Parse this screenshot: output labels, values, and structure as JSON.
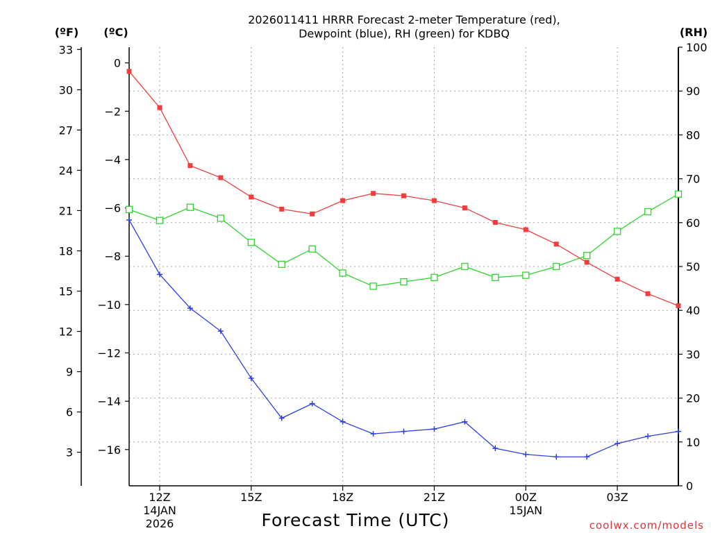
{
  "chart_data": {
    "type": "line",
    "title": "2026011411 HRRR Forecast 2-meter Temperature (red),",
    "title_line2": "Dewpoint (blue), RH (green) for KDBQ",
    "xlabel": "Forecast Time (UTC)",
    "credit": "coolwx.com/models",
    "units": {
      "fahrenheit": "(ºF)",
      "celsius": "(ºC)",
      "rh": "(RH)"
    },
    "x_hours": [
      11,
      12,
      13,
      14,
      15,
      16,
      17,
      18,
      19,
      20,
      21,
      22,
      23,
      24,
      25,
      26,
      27,
      28,
      29
    ],
    "xlim": [
      11,
      29
    ],
    "x_ticks": [
      {
        "hour": 12,
        "label": "12Z",
        "date": "14JAN",
        "year": "2026"
      },
      {
        "hour": 15,
        "label": "15Z",
        "date": "",
        "year": ""
      },
      {
        "hour": 18,
        "label": "18Z",
        "date": "",
        "year": ""
      },
      {
        "hour": 21,
        "label": "21Z",
        "date": "",
        "year": ""
      },
      {
        "hour": 24,
        "label": "00Z",
        "date": "15JAN",
        "year": ""
      },
      {
        "hour": 27,
        "label": "03Z",
        "date": "",
        "year": ""
      }
    ],
    "celsius_axis": {
      "ylim": [
        -17.5,
        0.65
      ],
      "ticks": [
        0,
        -2,
        -4,
        -6,
        -8,
        -10,
        -12,
        -14,
        -16
      ],
      "tick_labels": [
        "0",
        "−2",
        "−4",
        "−6",
        "−8",
        "−10",
        "−12",
        "−14",
        "−16"
      ]
    },
    "fahrenheit_axis": {
      "ticks": [
        33,
        30,
        27,
        24,
        21,
        18,
        15,
        12,
        9,
        6,
        3
      ]
    },
    "rh_axis": {
      "ylim": [
        0,
        100
      ],
      "ticks": [
        0,
        10,
        20,
        30,
        40,
        50,
        60,
        70,
        80,
        90,
        100
      ]
    },
    "series": [
      {
        "name": "Temperature",
        "axis": "celsius",
        "color": "#ef3e3e",
        "marker": "filled-square",
        "values": [
          -0.35,
          -1.85,
          -4.25,
          -4.75,
          -5.55,
          -6.05,
          -6.25,
          -5.7,
          -5.4,
          -5.5,
          -5.7,
          -6.0,
          -6.6,
          -6.9,
          -7.5,
          -8.25,
          -8.95,
          -9.55,
          -10.05
        ]
      },
      {
        "name": "Dewpoint",
        "axis": "celsius",
        "color": "#2a3fe8",
        "marker": "plus",
        "values": [
          -6.5,
          -8.75,
          -10.15,
          -11.1,
          -13.05,
          -14.7,
          -14.1,
          -14.85,
          -15.35,
          -15.25,
          -15.15,
          -14.85,
          -15.95,
          -16.2,
          -16.3,
          -16.3,
          -15.75,
          -15.45,
          -15.25
        ]
      },
      {
        "name": "RH",
        "axis": "rh",
        "color": "#2fd42f",
        "marker": "open-square",
        "values": [
          63,
          60.5,
          63.5,
          61,
          55.5,
          50.5,
          54,
          48.5,
          45.5,
          46.5,
          47.5,
          50,
          47.5,
          48,
          50,
          52.5,
          58,
          62.5,
          66.5
        ]
      }
    ]
  }
}
